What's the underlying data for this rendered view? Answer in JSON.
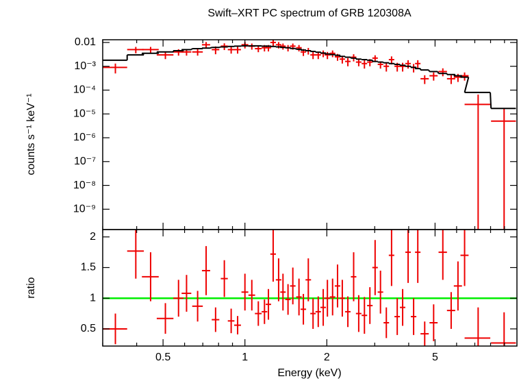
{
  "chart_data": {
    "type": "spectrum",
    "title": "Swift–XRT PC spectrum of GRB 120308A",
    "xlabel": "Energy (keV)",
    "ylabel": "counts s⁻¹ keV⁻¹",
    "y2label": "ratio",
    "xscale": "log",
    "yscale": "log",
    "xlim": [
      0.3,
      10
    ],
    "xticks": [
      0.5,
      1,
      2,
      5
    ],
    "xminor": [
      0.3,
      0.4,
      0.6,
      0.7,
      0.8,
      0.9,
      3,
      4,
      6,
      7,
      8,
      9
    ],
    "ylim": [
      1.4e-10,
      0.013
    ],
    "yticks": [
      {
        "value": 0.01,
        "label": "0.01"
      },
      {
        "value": 0.001,
        "label": "10⁻³"
      },
      {
        "value": 0.0001,
        "label": "10⁻⁴"
      },
      {
        "value": 1e-05,
        "label": "10⁻⁵"
      },
      {
        "value": 1e-06,
        "label": "10⁻⁶"
      },
      {
        "value": 1e-07,
        "label": "10⁻⁷"
      },
      {
        "value": 1e-08,
        "label": "10⁻⁸"
      },
      {
        "value": 1e-09,
        "label": "10⁻⁹"
      }
    ],
    "y2lim": [
      0.22,
      2.12
    ],
    "y2ticks": [
      0.5,
      1,
      1.5,
      2
    ],
    "y2_reference": 1,
    "reference_color": "#00ee00",
    "x": [
      0.334,
      0.397,
      0.45,
      0.51,
      0.57,
      0.61,
      0.67,
      0.72,
      0.78,
      0.84,
      0.89,
      0.94,
      1.0,
      1.06,
      1.12,
      1.18,
      1.22,
      1.27,
      1.33,
      1.38,
      1.44,
      1.5,
      1.58,
      1.64,
      1.71,
      1.78,
      1.86,
      1.94,
      2.01,
      2.1,
      2.19,
      2.28,
      2.39,
      2.51,
      2.62,
      2.75,
      2.88,
      3.01,
      3.15,
      3.31,
      3.46,
      3.63,
      3.8,
      3.98,
      4.17,
      4.32,
      4.58,
      4.94,
      5.34,
      5.73,
      6.07,
      6.42,
      7.2,
      8.97
    ],
    "xerr": [
      0.035,
      0.028,
      0.032,
      0.036,
      0.025,
      0.025,
      0.03,
      0.025,
      0.025,
      0.025,
      0.025,
      0.027,
      0.029,
      0.03,
      0.032,
      0.028,
      0.028,
      0.03,
      0.031,
      0.032,
      0.033,
      0.035,
      0.037,
      0.038,
      0.04,
      0.041,
      0.043,
      0.045,
      0.047,
      0.049,
      0.051,
      0.053,
      0.055,
      0.058,
      0.061,
      0.064,
      0.067,
      0.07,
      0.073,
      0.077,
      0.08,
      0.084,
      0.088,
      0.092,
      0.097,
      0.1,
      0.16,
      0.17,
      0.19,
      0.2,
      0.21,
      0.22,
      0.78,
      0.94
    ],
    "series": [
      {
        "name": "data",
        "color": "#ee0000",
        "values": [
          0.0009,
          0.005,
          0.005,
          0.003,
          0.004,
          0.004,
          0.004,
          0.008,
          0.005,
          0.007,
          0.005,
          0.005,
          0.008,
          0.007,
          0.0055,
          0.006,
          0.006,
          0.01,
          0.008,
          0.007,
          0.006,
          0.007,
          0.006,
          0.004,
          0.0045,
          0.003,
          0.003,
          0.0035,
          0.003,
          0.0035,
          0.0025,
          0.002,
          0.0016,
          0.0024,
          0.0015,
          0.0013,
          0.0015,
          0.0022,
          0.0012,
          0.001,
          0.0019,
          0.001,
          0.001,
          0.0013,
          0.0009,
          0.0013,
          0.0003,
          0.0004,
          0.0006,
          0.0003,
          0.00035,
          0.0004,
          2.5e-05,
          5e-06
        ],
        "yerr": [
          0.0004,
          0.0015,
          0.0015,
          0.001,
          0.0012,
          0.0012,
          0.0012,
          0.0024,
          0.0018,
          0.0022,
          0.0016,
          0.0016,
          0.0024,
          0.002,
          0.0016,
          0.0018,
          0.0018,
          0.003,
          0.0024,
          0.002,
          0.0018,
          0.002,
          0.0018,
          0.0013,
          0.0014,
          0.001,
          0.001,
          0.0011,
          0.001,
          0.0011,
          0.0008,
          0.0007,
          0.0006,
          0.0008,
          0.0005,
          0.0005,
          0.0005,
          0.0007,
          0.0004,
          0.0004,
          0.0007,
          0.0004,
          0.0004,
          0.0005,
          0.00035,
          0.0005,
          0.00012,
          0.00015,
          0.00022,
          0.00012,
          0.00013,
          0.00015,
          4e-05,
          1.2e-05
        ]
      },
      {
        "name": "model",
        "color": "#000000",
        "values": [
          0.0018,
          0.003,
          0.0035,
          0.004,
          0.0045,
          0.005,
          0.0055,
          0.0058,
          0.0062,
          0.0065,
          0.0068,
          0.007,
          0.0072,
          0.0072,
          0.0072,
          0.007,
          0.007,
          0.0068,
          0.0065,
          0.0062,
          0.006,
          0.0056,
          0.0052,
          0.0048,
          0.0045,
          0.0042,
          0.0039,
          0.0036,
          0.0033,
          0.0031,
          0.0029,
          0.0026,
          0.0024,
          0.0022,
          0.002,
          0.0019,
          0.0018,
          0.0016,
          0.0015,
          0.0014,
          0.0013,
          0.0012,
          0.0011,
          0.001,
          0.0009,
          0.0008,
          0.0007,
          0.0006,
          0.0005,
          0.00045,
          0.0004,
          0.00035,
          8e-05,
          1.7e-05
        ]
      },
      {
        "name": "ratio",
        "color": "#ee0000",
        "axis": "y2",
        "values": [
          0.5,
          1.77,
          1.35,
          0.67,
          1.0,
          1.08,
          0.87,
          1.45,
          0.65,
          1.32,
          0.63,
          0.56,
          1.1,
          1.05,
          0.75,
          0.78,
          0.9,
          1.72,
          1.3,
          1.1,
          0.98,
          1.2,
          1.02,
          0.82,
          1.3,
          0.75,
          0.78,
          0.85,
          1.0,
          1.02,
          1.2,
          1.0,
          0.78,
          1.35,
          0.75,
          0.72,
          0.88,
          1.5,
          1.1,
          0.6,
          1.7,
          0.7,
          0.85,
          1.75,
          0.7,
          1.75,
          0.42,
          0.6,
          1.75,
          0.8,
          1.2,
          1.7,
          0.35,
          0.27
        ],
        "yerr": [
          0.25,
          0.45,
          0.4,
          0.25,
          0.3,
          0.3,
          0.25,
          0.4,
          0.2,
          0.3,
          0.2,
          0.15,
          0.3,
          0.25,
          0.2,
          0.2,
          0.25,
          0.45,
          0.35,
          0.3,
          0.25,
          0.3,
          0.3,
          0.25,
          0.35,
          0.25,
          0.25,
          0.3,
          0.3,
          0.3,
          0.35,
          0.3,
          0.25,
          0.4,
          0.3,
          0.3,
          0.3,
          0.45,
          0.35,
          0.25,
          0.5,
          0.3,
          0.3,
          0.5,
          0.3,
          0.5,
          0.2,
          0.3,
          0.45,
          0.3,
          0.4,
          0.5,
          0.5,
          0.5
        ]
      }
    ]
  }
}
